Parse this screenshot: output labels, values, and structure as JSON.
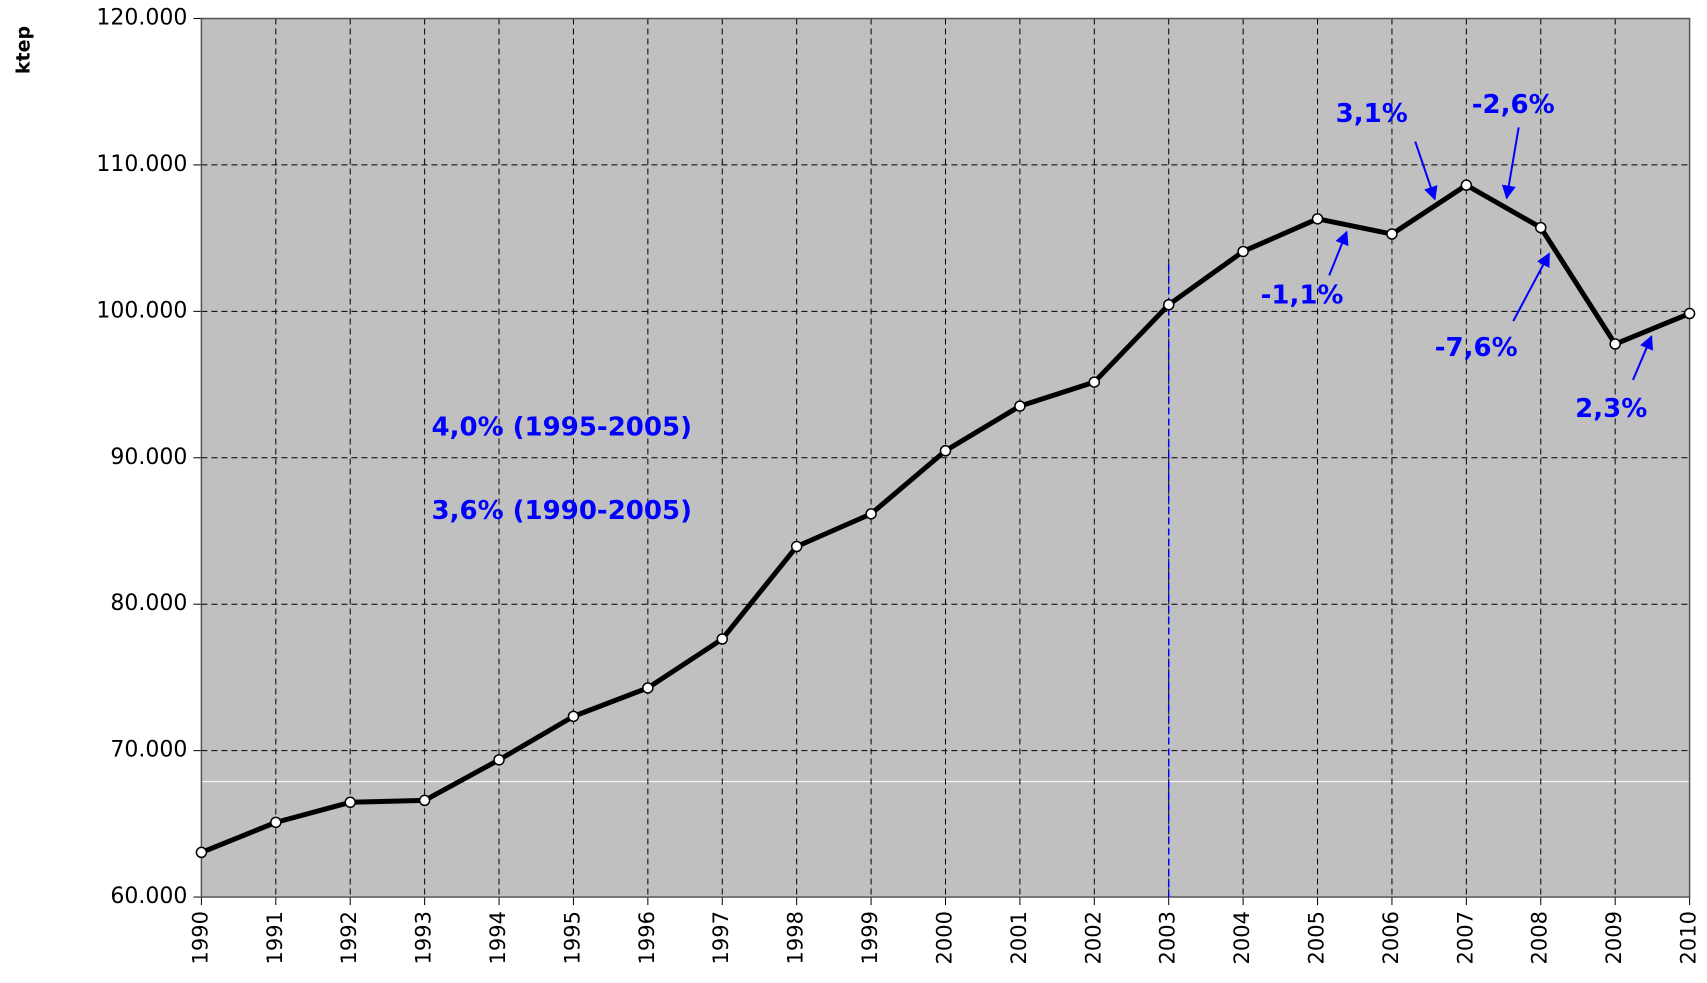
{
  "chart_data": {
    "type": "line",
    "y_label": "ktep",
    "categories": [
      "1990",
      "1991",
      "1992",
      "1993",
      "1994",
      "1995",
      "1996",
      "1997",
      "1998",
      "1999",
      "2000",
      "2001",
      "2002",
      "2003",
      "2004",
      "2005",
      "2006",
      "2007",
      "2008",
      "2009",
      "2010"
    ],
    "series": [
      {
        "name": "ktep",
        "color": "#000000",
        "values": [
          63050,
          65100,
          66470,
          66600,
          69370,
          72340,
          74280,
          77620,
          83940,
          86170,
          90480,
          93530,
          95170,
          100450,
          104090,
          106320,
          105280,
          108620,
          105720,
          97770,
          99850
        ]
      }
    ],
    "ylim": [
      60000,
      120000
    ],
    "yticks": [
      {
        "value": 60000,
        "label": "60.000"
      },
      {
        "value": 70000,
        "label": "70.000"
      },
      {
        "value": 80000,
        "label": "80.000"
      },
      {
        "value": 90000,
        "label": "90.000"
      },
      {
        "value": 100000,
        "label": "100.000"
      },
      {
        "value": 110000,
        "label": "110.000"
      },
      {
        "value": 120000,
        "label": "120.000"
      }
    ],
    "grid": true,
    "annotations": [
      "3,1%",
      "-2,6%",
      "-1,1%",
      "-7,6%",
      "2,3%",
      "4,0% (1995-2005)",
      "3,6% (1990-2005)"
    ],
    "annotation_color": "#0000ff",
    "plot_background": "#c0c0c0"
  }
}
